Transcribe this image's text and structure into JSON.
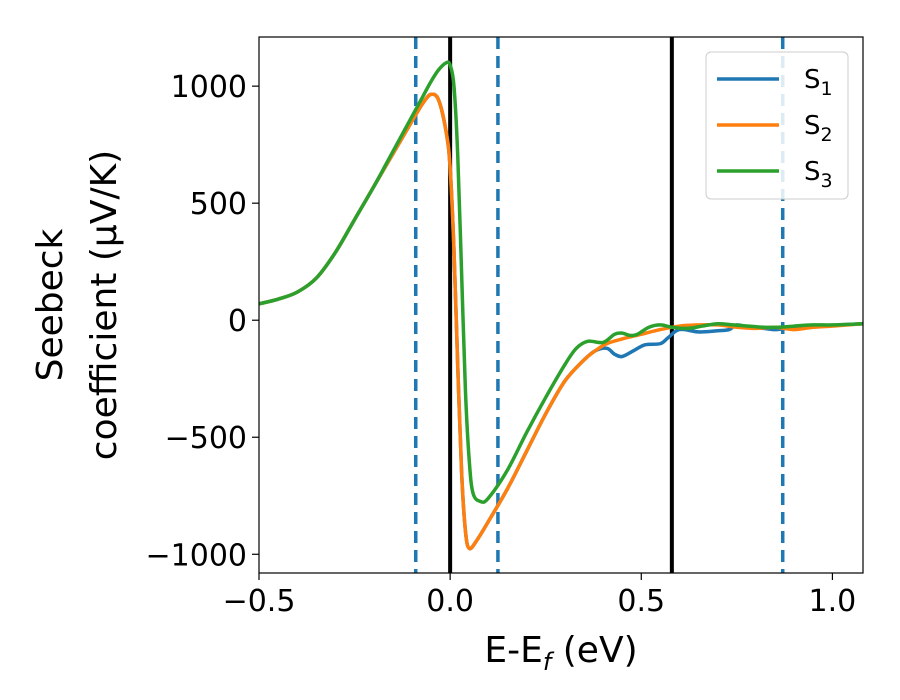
{
  "chart_data": {
    "type": "line",
    "xlabel": "E-E",
    "xlabel_sub": "f",
    "xlabel_unit": " (eV)",
    "ylabel_line1": "Seebeck",
    "ylabel_line2": "coefficient  (μV/K)",
    "xlim": [
      -0.5,
      1.08
    ],
    "ylim": [
      -1080,
      1210
    ],
    "x_ticks": [
      -0.5,
      0.0,
      0.5,
      1.0
    ],
    "x_tick_labels": [
      "−0.5",
      "0.0",
      "0.5",
      "1.0"
    ],
    "y_ticks": [
      -1000,
      -500,
      0,
      500,
      1000
    ],
    "y_tick_labels": [
      "−1000",
      "−500",
      "0",
      "500",
      "1000"
    ],
    "legend": {
      "placement": "top-right",
      "entries": [
        {
          "base": "S",
          "sub": "1"
        },
        {
          "base": "S",
          "sub": "2"
        },
        {
          "base": "S",
          "sub": "3"
        }
      ]
    },
    "vlines": [
      {
        "x": -0.09,
        "style": "dashed",
        "color": "#1f77b4"
      },
      {
        "x": 0.0,
        "style": "solid",
        "color": "#000000"
      },
      {
        "x": 0.125,
        "style": "dashed",
        "color": "#1f77b4"
      },
      {
        "x": 0.58,
        "style": "solid",
        "color": "#000000"
      },
      {
        "x": 0.87,
        "style": "dashed",
        "color": "#1f77b4"
      }
    ],
    "series": [
      {
        "name": "S1",
        "color": "#1f77b4",
        "points": [
          [
            -0.5,
            70
          ],
          [
            -0.45,
            90
          ],
          [
            -0.4,
            120
          ],
          [
            -0.35,
            180
          ],
          [
            -0.3,
            290
          ],
          [
            -0.25,
            430
          ],
          [
            -0.2,
            570
          ],
          [
            -0.15,
            710
          ],
          [
            -0.1,
            850
          ],
          [
            -0.07,
            930
          ],
          [
            -0.05,
            965
          ],
          [
            -0.03,
            940
          ],
          [
            -0.01,
            800
          ],
          [
            0.0,
            650
          ],
          [
            0.01,
            300
          ],
          [
            0.02,
            -200
          ],
          [
            0.03,
            -650
          ],
          [
            0.04,
            -900
          ],
          [
            0.05,
            -975
          ],
          [
            0.07,
            -940
          ],
          [
            0.1,
            -860
          ],
          [
            0.15,
            -720
          ],
          [
            0.2,
            -560
          ],
          [
            0.25,
            -400
          ],
          [
            0.3,
            -260
          ],
          [
            0.35,
            -170
          ],
          [
            0.38,
            -130
          ],
          [
            0.41,
            -120
          ],
          [
            0.43,
            -145
          ],
          [
            0.45,
            -155
          ],
          [
            0.48,
            -130
          ],
          [
            0.51,
            -105
          ],
          [
            0.55,
            -100
          ],
          [
            0.57,
            -75
          ],
          [
            0.6,
            -40
          ],
          [
            0.65,
            -50
          ],
          [
            0.7,
            -45
          ],
          [
            0.73,
            -40
          ],
          [
            0.75,
            -20
          ],
          [
            0.78,
            -30
          ],
          [
            0.82,
            -35
          ],
          [
            0.85,
            -40
          ],
          [
            0.88,
            -35
          ],
          [
            0.92,
            -30
          ],
          [
            0.97,
            -25
          ],
          [
            1.02,
            -20
          ],
          [
            1.08,
            -15
          ]
        ]
      },
      {
        "name": "S2",
        "color": "#ff7f0e",
        "points": [
          [
            -0.5,
            70
          ],
          [
            -0.45,
            90
          ],
          [
            -0.4,
            120
          ],
          [
            -0.35,
            180
          ],
          [
            -0.3,
            290
          ],
          [
            -0.25,
            430
          ],
          [
            -0.2,
            570
          ],
          [
            -0.15,
            710
          ],
          [
            -0.1,
            850
          ],
          [
            -0.07,
            930
          ],
          [
            -0.05,
            965
          ],
          [
            -0.03,
            940
          ],
          [
            -0.01,
            800
          ],
          [
            0.0,
            650
          ],
          [
            0.01,
            300
          ],
          [
            0.02,
            -200
          ],
          [
            0.03,
            -650
          ],
          [
            0.04,
            -900
          ],
          [
            0.05,
            -975
          ],
          [
            0.07,
            -940
          ],
          [
            0.1,
            -860
          ],
          [
            0.15,
            -720
          ],
          [
            0.2,
            -560
          ],
          [
            0.25,
            -400
          ],
          [
            0.3,
            -260
          ],
          [
            0.35,
            -170
          ],
          [
            0.38,
            -130
          ],
          [
            0.41,
            -100
          ],
          [
            0.45,
            -80
          ],
          [
            0.5,
            -60
          ],
          [
            0.55,
            -40
          ],
          [
            0.6,
            -25
          ],
          [
            0.65,
            -20
          ],
          [
            0.7,
            -20
          ],
          [
            0.75,
            -30
          ],
          [
            0.8,
            -35
          ],
          [
            0.85,
            -30
          ],
          [
            0.9,
            -40
          ],
          [
            0.95,
            -30
          ],
          [
            1.0,
            -25
          ],
          [
            1.08,
            -15
          ]
        ]
      },
      {
        "name": "S3",
        "color": "#2ca02c",
        "points": [
          [
            -0.5,
            70
          ],
          [
            -0.45,
            90
          ],
          [
            -0.4,
            120
          ],
          [
            -0.35,
            180
          ],
          [
            -0.3,
            290
          ],
          [
            -0.25,
            430
          ],
          [
            -0.2,
            570
          ],
          [
            -0.15,
            720
          ],
          [
            -0.1,
            870
          ],
          [
            -0.07,
            960
          ],
          [
            -0.05,
            1020
          ],
          [
            -0.03,
            1070
          ],
          [
            -0.01,
            1100
          ],
          [
            0.0,
            1090
          ],
          [
            0.01,
            1000
          ],
          [
            0.02,
            700
          ],
          [
            0.03,
            200
          ],
          [
            0.04,
            -300
          ],
          [
            0.05,
            -600
          ],
          [
            0.06,
            -740
          ],
          [
            0.08,
            -775
          ],
          [
            0.1,
            -760
          ],
          [
            0.15,
            -640
          ],
          [
            0.2,
            -480
          ],
          [
            0.25,
            -330
          ],
          [
            0.3,
            -190
          ],
          [
            0.33,
            -120
          ],
          [
            0.36,
            -90
          ],
          [
            0.4,
            -95
          ],
          [
            0.43,
            -60
          ],
          [
            0.45,
            -55
          ],
          [
            0.47,
            -65
          ],
          [
            0.49,
            -60
          ],
          [
            0.52,
            -30
          ],
          [
            0.55,
            -20
          ],
          [
            0.58,
            -30
          ],
          [
            0.62,
            -35
          ],
          [
            0.66,
            -25
          ],
          [
            0.7,
            -15
          ],
          [
            0.74,
            -20
          ],
          [
            0.78,
            -25
          ],
          [
            0.82,
            -30
          ],
          [
            0.86,
            -30
          ],
          [
            0.9,
            -25
          ],
          [
            0.95,
            -20
          ],
          [
            1.0,
            -20
          ],
          [
            1.08,
            -15
          ]
        ]
      }
    ]
  }
}
